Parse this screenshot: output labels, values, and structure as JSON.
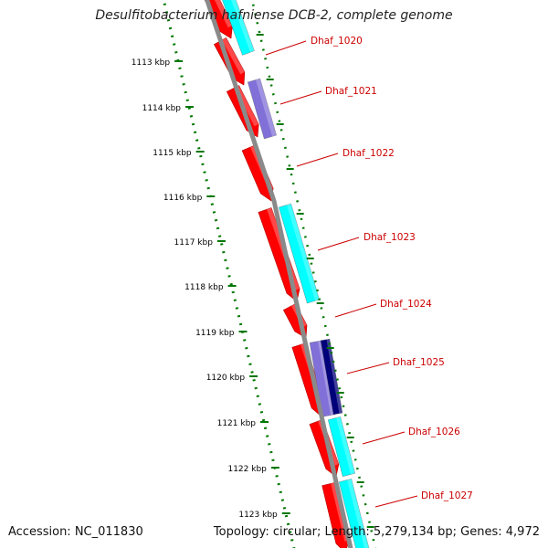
{
  "title": "Desulfitobacterium hafniense DCB-2, complete genome",
  "accession": "Accession: NC_011830",
  "topology": "Topology: circular; Length: 5,279,134 bp; Genes: 4,972",
  "colors": {
    "cds": "#ff0000",
    "cyan_feature": "#00ffff",
    "purple_feature": "#8070d8",
    "navy_feature": "#00007a",
    "backbone": "#8a8a8a",
    "scale_ticks": "#007700",
    "gene_labels": "#cc0000"
  },
  "ruler": {
    "tick_labels": [
      "1113 kbp",
      "1114 kbp",
      "1115 kbp",
      "1116 kbp",
      "1117 kbp",
      "1118 kbp",
      "1119 kbp",
      "1120 kbp",
      "1121 kbp",
      "1122 kbp",
      "1123 kbp"
    ]
  },
  "genes": [
    {
      "label": "Dhaf_1020"
    },
    {
      "label": "Dhaf_1021"
    },
    {
      "label": "Dhaf_1022"
    },
    {
      "label": "Dhaf_1023"
    },
    {
      "label": "Dhaf_1024"
    },
    {
      "label": "Dhaf_1025"
    },
    {
      "label": "Dhaf_1026"
    },
    {
      "label": "Dhaf_1027"
    }
  ]
}
